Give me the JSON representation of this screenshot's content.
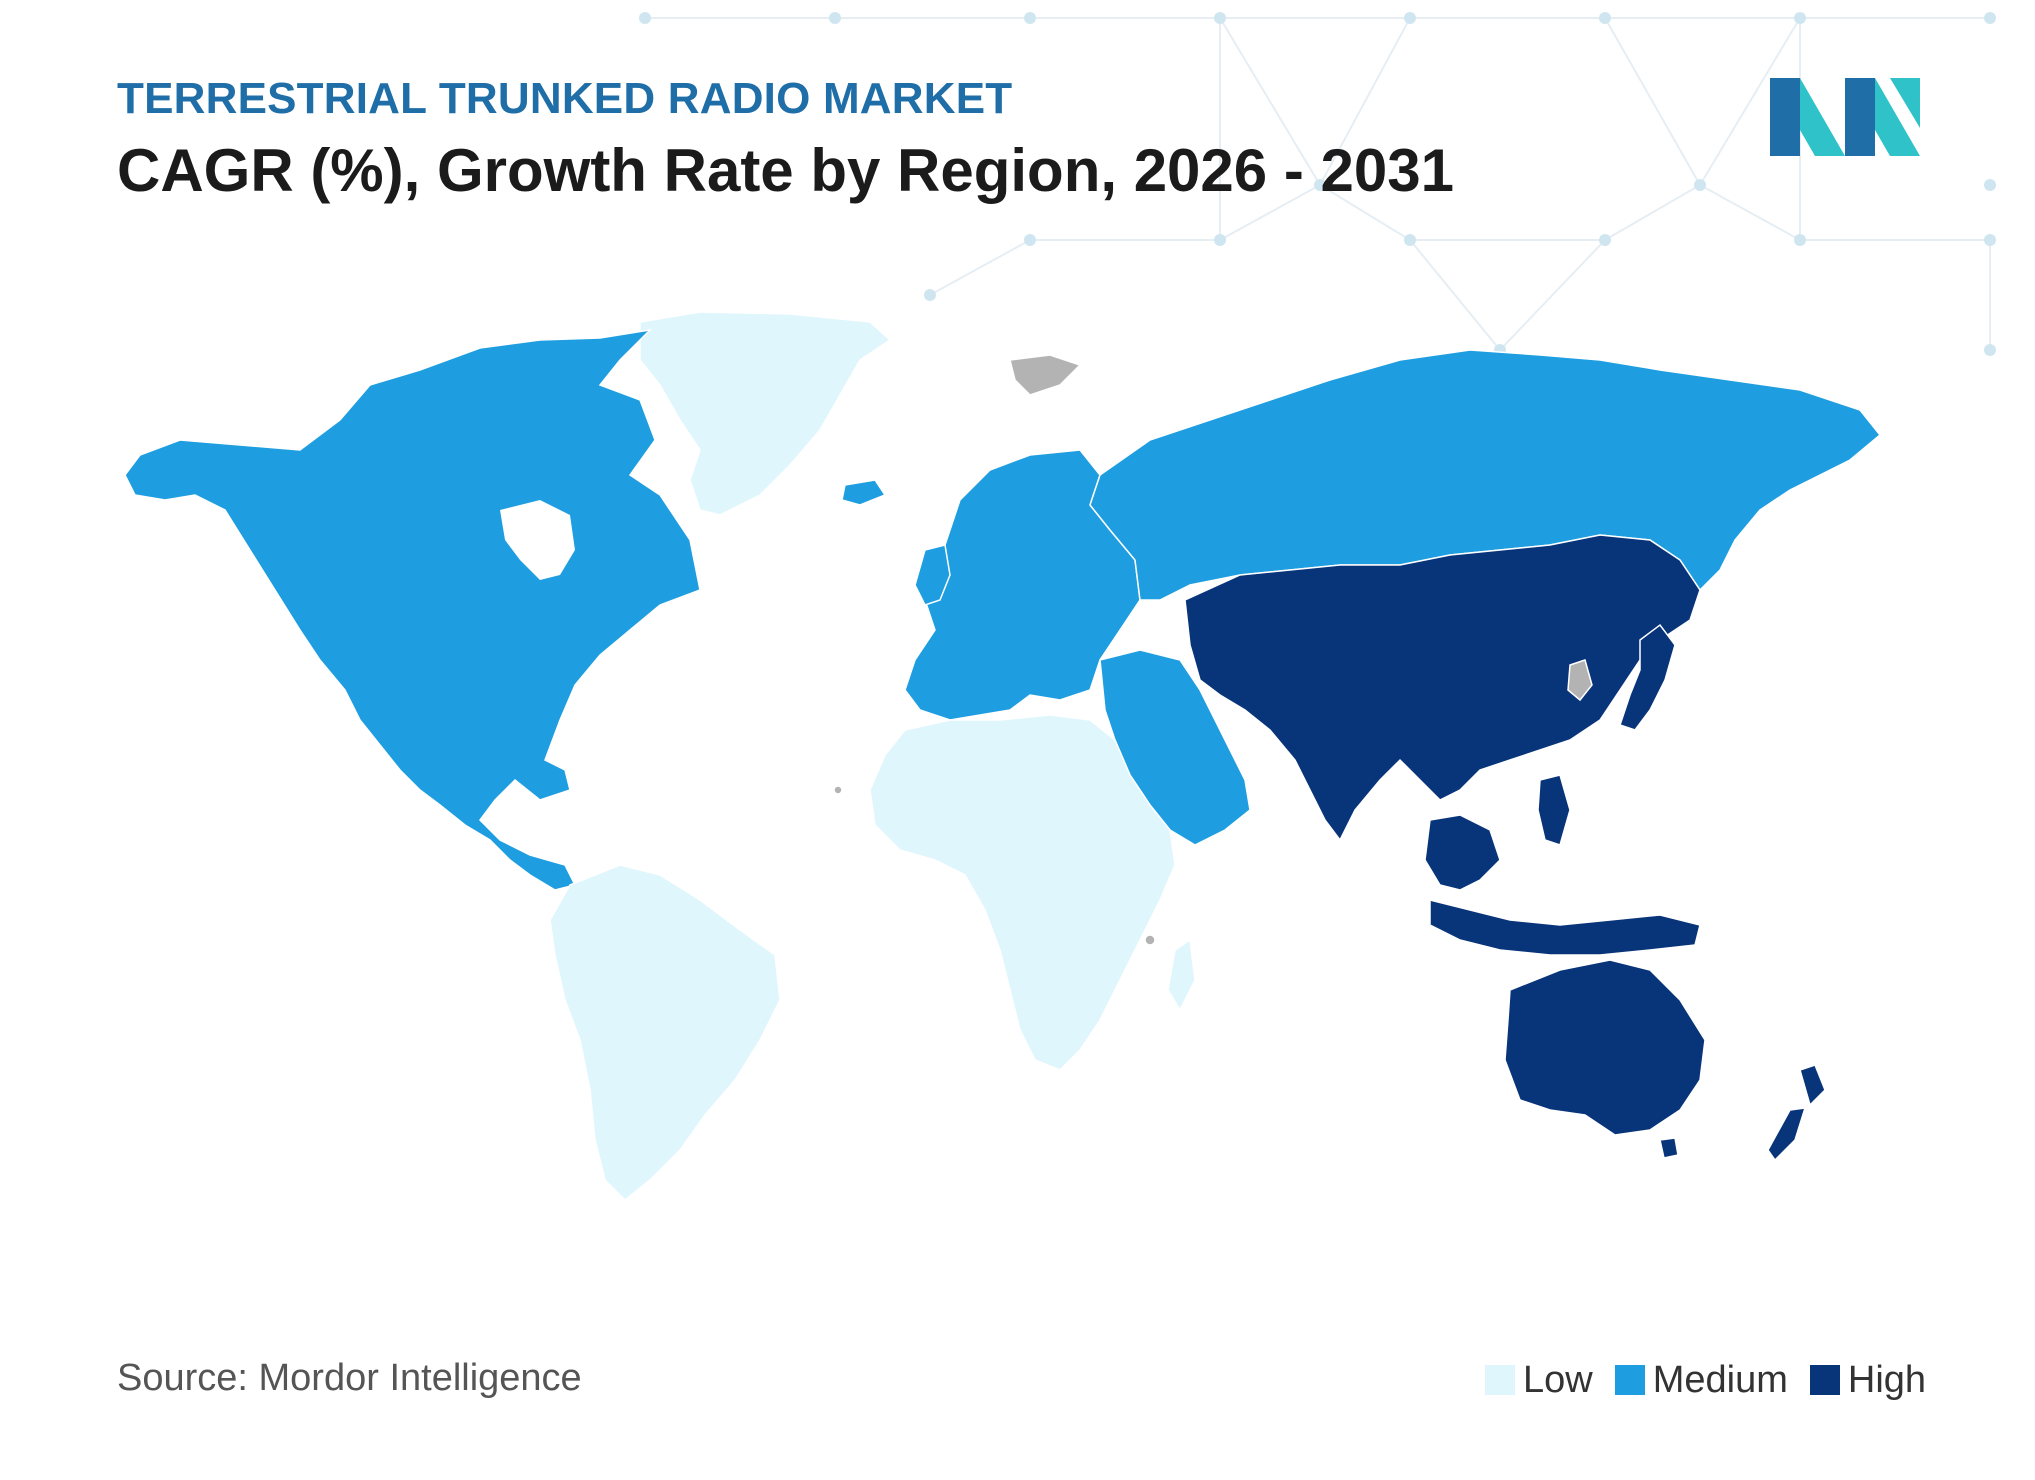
{
  "header": {
    "subtitle": "TERRESTRIAL TRUNKED RADIO MARKET",
    "title": "CAGR (%), Growth Rate by Region, 2026 - 2031"
  },
  "footer": {
    "source": "Source: Mordor Intelligence"
  },
  "legend": [
    {
      "label": "Low",
      "color": "#dff6fc"
    },
    {
      "label": "Medium",
      "color": "#1e9ee0"
    },
    {
      "label": "High",
      "color": "#08347a"
    }
  ],
  "colors": {
    "low": "#dff6fc",
    "medium": "#1e9ee0",
    "high": "#08347a",
    "no_data": "#b3b3b3",
    "logo_dark": "#1f6ea8",
    "logo_teal": "#2fc2c8"
  },
  "regions": [
    {
      "id": "north-america",
      "level": "medium"
    },
    {
      "id": "greenland",
      "level": "low"
    },
    {
      "id": "south-america",
      "level": "low"
    },
    {
      "id": "europe",
      "level": "medium"
    },
    {
      "id": "russia",
      "level": "medium"
    },
    {
      "id": "middle-east",
      "level": "medium"
    },
    {
      "id": "africa",
      "level": "low"
    },
    {
      "id": "asia",
      "level": "high"
    },
    {
      "id": "japan",
      "level": "high"
    },
    {
      "id": "southeast-asia",
      "level": "high"
    },
    {
      "id": "australia",
      "level": "high"
    },
    {
      "id": "new-zealand",
      "level": "high"
    }
  ]
}
